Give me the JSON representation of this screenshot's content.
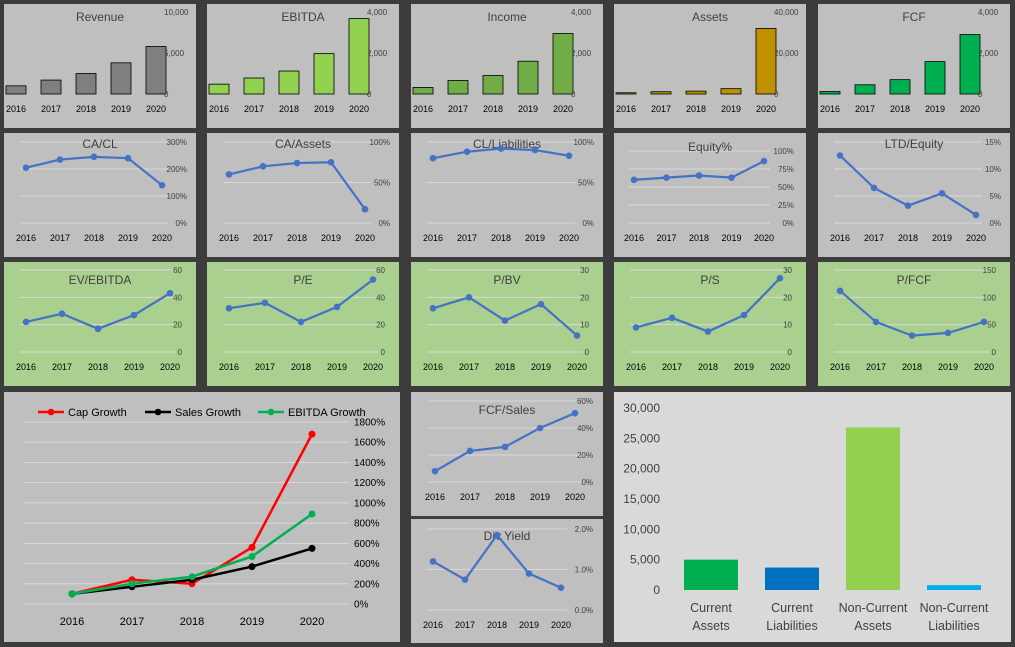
{
  "years": [
    "2016",
    "2017",
    "2018",
    "2019",
    "2020"
  ],
  "colors": {
    "gray_panel": "#bfbfbf",
    "green_panel": "#a9d08e",
    "light_panel": "#d9d9d9",
    "line_blue": "#4472c4",
    "gridline": "#d9d9d9",
    "text": "#404040"
  },
  "chart_data": [
    {
      "id": "revenue",
      "type": "bar",
      "title": "Revenue",
      "categories": [
        "2016",
        "2017",
        "2018",
        "2019",
        "2020"
      ],
      "values": [
        1000,
        1700,
        2500,
        3800,
        5800
      ],
      "ylim": [
        0,
        10000
      ],
      "yticks": [
        0,
        5000,
        10000
      ],
      "ytick_labels": [
        "0",
        "5,000",
        "10,000"
      ],
      "bar_color": "#7f7f7f"
    },
    {
      "id": "ebitda",
      "type": "bar",
      "title": "EBITDA",
      "categories": [
        "2016",
        "2017",
        "2018",
        "2019",
        "2020"
      ],
      "values": [
        480,
        780,
        1120,
        1970,
        3680
      ],
      "ylim": [
        0,
        4000
      ],
      "yticks": [
        0,
        2000,
        4000
      ],
      "ytick_labels": [
        "0",
        "2,000",
        "4,000"
      ],
      "bar_color": "#92d050"
    },
    {
      "id": "income",
      "type": "bar",
      "title": "Income",
      "categories": [
        "2016",
        "2017",
        "2018",
        "2019",
        "2020"
      ],
      "values": [
        320,
        660,
        900,
        1600,
        2950
      ],
      "ylim": [
        0,
        4000
      ],
      "yticks": [
        0,
        2000,
        4000
      ],
      "ytick_labels": [
        "0",
        "2,000",
        "4,000"
      ],
      "bar_color": "#70ad47"
    },
    {
      "id": "assets",
      "type": "bar",
      "title": "Assets",
      "categories": [
        "2016",
        "2017",
        "2018",
        "2019",
        "2020"
      ],
      "values": [
        600,
        1100,
        1400,
        2600,
        32000
      ],
      "ylim": [
        0,
        40000
      ],
      "yticks": [
        0,
        20000,
        40000
      ],
      "ytick_labels": [
        "0",
        "20,000",
        "40,000"
      ],
      "bar_color": "#bf9000"
    },
    {
      "id": "fcf",
      "type": "bar",
      "title": "FCF",
      "categories": [
        "2016",
        "2017",
        "2018",
        "2019",
        "2020"
      ],
      "values": [
        120,
        450,
        700,
        1580,
        2900
      ],
      "ylim": [
        0,
        4000
      ],
      "yticks": [
        0,
        2000,
        4000
      ],
      "ytick_labels": [
        "0",
        "2,000",
        "4,000"
      ],
      "bar_color": "#00b050"
    },
    {
      "id": "ca_cl",
      "type": "line",
      "title": "CA/CL",
      "categories": [
        "2016",
        "2017",
        "2018",
        "2019",
        "2020"
      ],
      "values": [
        205,
        235,
        245,
        240,
        140
      ],
      "ylim": [
        0,
        300
      ],
      "yticks": [
        0,
        100,
        200,
        300
      ],
      "ytick_labels": [
        "0%",
        "100%",
        "200%",
        "300%"
      ]
    },
    {
      "id": "ca_assets",
      "type": "line",
      "title": "CA/Assets",
      "categories": [
        "2016",
        "2017",
        "2018",
        "2019",
        "2020"
      ],
      "values": [
        60,
        70,
        74,
        75,
        17
      ],
      "ylim": [
        0,
        100
      ],
      "yticks": [
        0,
        50,
        100
      ],
      "ytick_labels": [
        "0%",
        "50%",
        "100%"
      ]
    },
    {
      "id": "cl_liabilities",
      "type": "line",
      "title": "CL/Liabilities",
      "categories": [
        "2016",
        "2017",
        "2018",
        "2019",
        "2020"
      ],
      "values": [
        80,
        88,
        92,
        90,
        83
      ],
      "ylim": [
        0,
        100
      ],
      "yticks": [
        0,
        50,
        100
      ],
      "ytick_labels": [
        "0%",
        "50%",
        "100%"
      ]
    },
    {
      "id": "equity_pct",
      "type": "line",
      "title": "Equity%",
      "categories": [
        "2016",
        "2017",
        "2018",
        "2019",
        "2020"
      ],
      "values": [
        60,
        63,
        66,
        63,
        86
      ],
      "ylim": [
        0,
        100
      ],
      "yticks": [
        0,
        25,
        50,
        75,
        100
      ],
      "ytick_labels": [
        "0%",
        "25%",
        "50%",
        "75%",
        "100%"
      ]
    },
    {
      "id": "ltd_equity",
      "type": "line",
      "title": "LTD/Equity",
      "categories": [
        "2016",
        "2017",
        "2018",
        "2019",
        "2020"
      ],
      "values": [
        12.5,
        6.5,
        3.2,
        5.5,
        1.5
      ],
      "ylim": [
        0,
        15
      ],
      "yticks": [
        0,
        5,
        10,
        15
      ],
      "ytick_labels": [
        "0%",
        "5%",
        "10%",
        "15%"
      ]
    },
    {
      "id": "ev_ebitda",
      "type": "line",
      "title": "EV/EBITDA",
      "categories": [
        "2016",
        "2017",
        "2018",
        "2019",
        "2020"
      ],
      "values": [
        22,
        28,
        17,
        27,
        43
      ],
      "ylim": [
        0,
        60
      ],
      "yticks": [
        0,
        20,
        40,
        60
      ],
      "ytick_labels": [
        "0",
        "20",
        "40",
        "60"
      ]
    },
    {
      "id": "pe",
      "type": "line",
      "title": "P/E",
      "categories": [
        "2016",
        "2017",
        "2018",
        "2019",
        "2020"
      ],
      "values": [
        32,
        36,
        22,
        33,
        53
      ],
      "ylim": [
        0,
        60
      ],
      "yticks": [
        0,
        20,
        40,
        60
      ],
      "ytick_labels": [
        "0",
        "20",
        "40",
        "60"
      ]
    },
    {
      "id": "pbv",
      "type": "line",
      "title": "P/BV",
      "categories": [
        "2016",
        "2017",
        "2018",
        "2019",
        "2020"
      ],
      "values": [
        16,
        20,
        11.5,
        17.5,
        6
      ],
      "ylim": [
        0,
        30
      ],
      "yticks": [
        0,
        10,
        20,
        30
      ],
      "ytick_labels": [
        "0",
        "10",
        "20",
        "30"
      ]
    },
    {
      "id": "ps",
      "type": "line",
      "title": "P/S",
      "categories": [
        "2016",
        "2017",
        "2018",
        "2019",
        "2020"
      ],
      "values": [
        9,
        12.5,
        7.5,
        13.5,
        27
      ],
      "ylim": [
        0,
        30
      ],
      "yticks": [
        0,
        10,
        20,
        30
      ],
      "ytick_labels": [
        "0",
        "10",
        "20",
        "30"
      ]
    },
    {
      "id": "p_fcf",
      "type": "line",
      "title": "P/FCF",
      "categories": [
        "2016",
        "2017",
        "2018",
        "2019",
        "2020"
      ],
      "values": [
        112,
        55,
        30,
        35,
        55
      ],
      "ylim": [
        0,
        150
      ],
      "yticks": [
        0,
        50,
        100,
        150
      ],
      "ytick_labels": [
        "0",
        "50",
        "100",
        "150"
      ]
    },
    {
      "id": "growth",
      "type": "line",
      "title": "",
      "categories": [
        "2016",
        "2017",
        "2018",
        "2019",
        "2020"
      ],
      "ylim": [
        0,
        1800
      ],
      "yticks": [
        0,
        200,
        400,
        600,
        800,
        1000,
        1200,
        1400,
        1600,
        1800
      ],
      "ytick_labels": [
        "0%",
        "200%",
        "400%",
        "600%",
        "800%",
        "1000%",
        "1200%",
        "1400%",
        "1600%",
        "1800%"
      ],
      "series": [
        {
          "name": "Cap Growth",
          "values": [
            100,
            240,
            200,
            560,
            1680
          ],
          "color": "#ff0000"
        },
        {
          "name": "Sales Growth",
          "values": [
            100,
            170,
            240,
            370,
            550
          ],
          "color": "#000000"
        },
        {
          "name": "EBITDA Growth",
          "values": [
            100,
            200,
            270,
            470,
            890
          ],
          "color": "#00b050"
        }
      ]
    },
    {
      "id": "fcf_sales",
      "type": "line",
      "title": "FCF/Sales",
      "categories": [
        "2016",
        "2017",
        "2018",
        "2019",
        "2020"
      ],
      "values": [
        8,
        23,
        26,
        40,
        51
      ],
      "ylim": [
        0,
        60
      ],
      "yticks": [
        0,
        20,
        40,
        60
      ],
      "ytick_labels": [
        "0%",
        "20%",
        "40%",
        "60%"
      ]
    },
    {
      "id": "div_yield",
      "type": "line",
      "title": "Div Yield",
      "categories": [
        "2016",
        "2017",
        "2018",
        "2019",
        "2020"
      ],
      "values": [
        1.2,
        0.75,
        1.85,
        0.9,
        0.55
      ],
      "ylim": [
        0,
        2
      ],
      "yticks": [
        0,
        1,
        2
      ],
      "ytick_labels": [
        "0.0%",
        "1.0%",
        "2.0%"
      ]
    },
    {
      "id": "balance",
      "type": "bar",
      "title": "",
      "categories": [
        "Current\nAssets",
        "Current\nLiabilities",
        "Non-Current\nAssets",
        "Non-Current\nLiabilities"
      ],
      "values": [
        5000,
        3700,
        26800,
        800
      ],
      "colors": [
        "#00b050",
        "#0070c0",
        "#92d050",
        "#00b0f0"
      ],
      "ylim": [
        0,
        30000
      ],
      "yticks": [
        0,
        5000,
        10000,
        15000,
        20000,
        25000,
        30000
      ],
      "ytick_labels": [
        "0",
        "5,000",
        "10,000",
        "15,000",
        "20,000",
        "25,000",
        "30,000"
      ]
    }
  ]
}
